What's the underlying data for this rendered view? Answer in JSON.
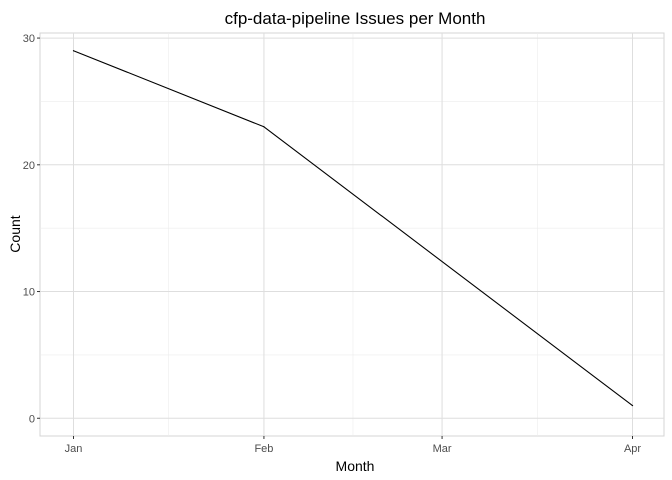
{
  "chart_data": {
    "type": "line",
    "title": "cfp-data-pipeline Issues per Month",
    "xlabel": "Month",
    "ylabel": "Count",
    "x": [
      "Jan",
      "Feb",
      "Mar",
      "Apr"
    ],
    "x_dates": [
      "2020-01-01",
      "2020-02-01",
      "2020-03-01",
      "2020-04-01"
    ],
    "series": [
      {
        "x": [
          "2020-01-01",
          "2020-02-01",
          "2020-04-01"
        ],
        "values": [
          29,
          23,
          1
        ]
      }
    ],
    "yticks": [
      0,
      10,
      20,
      30
    ],
    "ylim": [
      -1.4,
      30.4
    ],
    "grid": true,
    "legend": "none",
    "line_color": "#000000",
    "grid_color": "#dedede",
    "panel_border_color": "#d4d4d4"
  }
}
